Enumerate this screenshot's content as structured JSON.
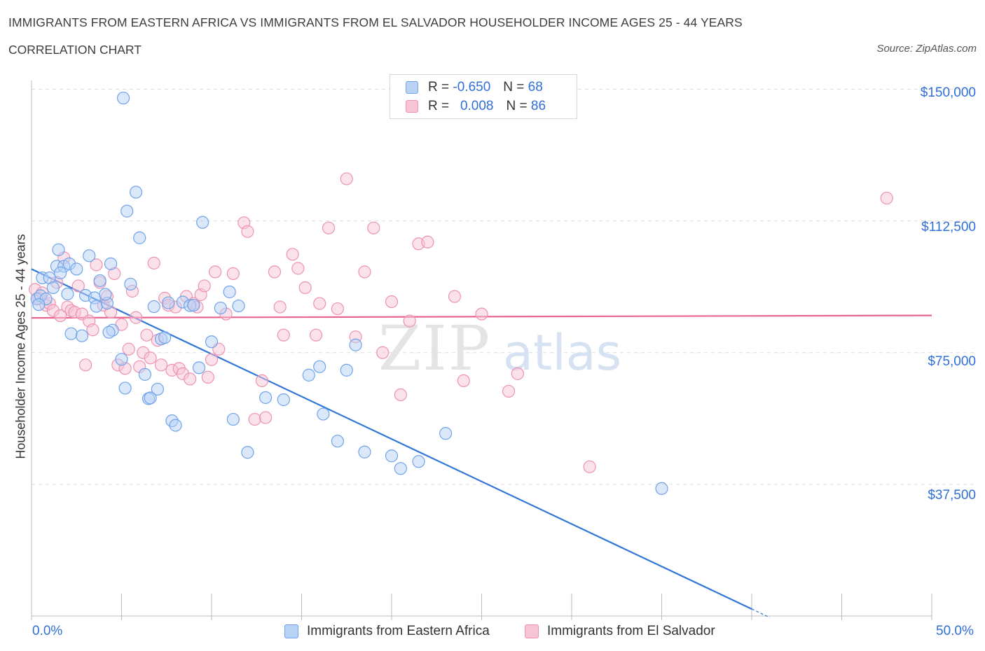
{
  "header": {
    "title": "IMMIGRANTS FROM EASTERN AFRICA VS IMMIGRANTS FROM EL SALVADOR HOUSEHOLDER INCOME AGES 25 - 44 YEARS",
    "subtitle": "CORRELATION CHART",
    "source": "Source: ZipAtlas.com"
  },
  "watermark": "ZIPatlas",
  "legend": {
    "rows": [
      {
        "r_label": "R =",
        "r_value": "-0.650",
        "n_label": "N =",
        "n_value": "68",
        "color": "#6fa3ea"
      },
      {
        "r_label": "R =",
        "r_value": "0.008",
        "n_label": "N =",
        "n_value": "86",
        "color": "#f09ab8"
      }
    ]
  },
  "colors": {
    "blue_fill": "#b8d2f5",
    "blue_stroke": "#6fa3ea",
    "blue_line": "#2f76d6",
    "pink_fill": "#f7c4d5",
    "pink_stroke": "#ec93b2",
    "pink_line": "#e8668d",
    "tick_text": "#2f6fd6",
    "grid": "#dcdcdc"
  },
  "chart_data": {
    "type": "scatter",
    "ylabel": "Householder Income Ages 25 - 44 years",
    "x_tick_labels": [
      "0.0%",
      "50.0%"
    ],
    "y_tick_labels": [
      "$150,000",
      "$112,500",
      "$75,000",
      "$37,500"
    ],
    "y_ticks": [
      150000,
      112500,
      75000,
      37500
    ],
    "xlim": [
      0,
      50
    ],
    "ylim": [
      0,
      152500
    ],
    "grid": true,
    "series": [
      {
        "name": "Immigrants from Eastern Africa",
        "color": "blue",
        "trend": {
          "x": [
            0,
            40
          ],
          "y": [
            98800,
            2000
          ]
        },
        "points": [
          [
            0.3,
            90300
          ],
          [
            0.5,
            91200
          ],
          [
            0.8,
            90300
          ],
          [
            0.6,
            96300
          ],
          [
            1.0,
            96300
          ],
          [
            1.4,
            99600
          ],
          [
            1.5,
            104300
          ],
          [
            1.8,
            99600
          ],
          [
            1.2,
            93500
          ],
          [
            2.1,
            100300
          ],
          [
            2.0,
            91700
          ],
          [
            2.5,
            98800
          ],
          [
            2.2,
            80400
          ],
          [
            2.8,
            79800
          ],
          [
            3.2,
            102600
          ],
          [
            3.0,
            91300
          ],
          [
            3.5,
            90600
          ],
          [
            3.8,
            95500
          ],
          [
            3.6,
            88200
          ],
          [
            4.2,
            89100
          ],
          [
            4.1,
            91600
          ],
          [
            4.4,
            100300
          ],
          [
            4.5,
            81400
          ],
          [
            4.3,
            80800
          ],
          [
            5.0,
            73100
          ],
          [
            5.2,
            64900
          ],
          [
            5.3,
            115300
          ],
          [
            5.5,
            94500
          ],
          [
            5.8,
            120700
          ],
          [
            6.0,
            107700
          ],
          [
            6.3,
            68800
          ],
          [
            6.5,
            61900
          ],
          [
            6.6,
            62100
          ],
          [
            6.8,
            88100
          ],
          [
            7.0,
            64600
          ],
          [
            7.2,
            78900
          ],
          [
            7.4,
            79300
          ],
          [
            7.6,
            89200
          ],
          [
            7.8,
            55600
          ],
          [
            8.0,
            54300
          ],
          [
            8.4,
            89400
          ],
          [
            8.8,
            88400
          ],
          [
            9.0,
            88500
          ],
          [
            9.3,
            70700
          ],
          [
            9.5,
            112100
          ],
          [
            10.0,
            78100
          ],
          [
            10.5,
            87700
          ],
          [
            11.0,
            92300
          ],
          [
            11.2,
            56000
          ],
          [
            11.5,
            88300
          ],
          [
            12.0,
            46600
          ],
          [
            13.0,
            62200
          ],
          [
            14.0,
            61600
          ],
          [
            15.4,
            68600
          ],
          [
            16.0,
            71000
          ],
          [
            16.2,
            57500
          ],
          [
            17.0,
            49800
          ],
          [
            17.5,
            70000
          ],
          [
            18.0,
            77200
          ],
          [
            18.5,
            46700
          ],
          [
            20.0,
            45600
          ],
          [
            20.5,
            42000
          ],
          [
            21.5,
            44000
          ],
          [
            23.0,
            52000
          ],
          [
            35.0,
            36300
          ],
          [
            0.4,
            88700
          ],
          [
            1.6,
            97700
          ],
          [
            5.1,
            147500
          ]
        ]
      },
      {
        "name": "Immigrants from El Salvador",
        "color": "pink",
        "trend": {
          "x": [
            0,
            50
          ],
          "y": [
            84900,
            85600
          ]
        },
        "points": [
          [
            0.2,
            93000
          ],
          [
            0.4,
            90500
          ],
          [
            0.6,
            92000
          ],
          [
            0.8,
            88500
          ],
          [
            1.0,
            89000
          ],
          [
            1.2,
            87000
          ],
          [
            1.4,
            95000
          ],
          [
            1.6,
            85500
          ],
          [
            1.8,
            102000
          ],
          [
            2.0,
            88000
          ],
          [
            2.2,
            87000
          ],
          [
            2.4,
            86500
          ],
          [
            2.6,
            94000
          ],
          [
            2.8,
            86000
          ],
          [
            3.0,
            71500
          ],
          [
            3.2,
            84000
          ],
          [
            3.4,
            81500
          ],
          [
            3.6,
            100000
          ],
          [
            3.8,
            95000
          ],
          [
            4.0,
            88500
          ],
          [
            4.2,
            91000
          ],
          [
            4.4,
            86500
          ],
          [
            4.6,
            97500
          ],
          [
            4.8,
            71500
          ],
          [
            5.0,
            83000
          ],
          [
            5.2,
            70500
          ],
          [
            5.4,
            76000
          ],
          [
            5.6,
            92500
          ],
          [
            5.8,
            85000
          ],
          [
            6.0,
            71000
          ],
          [
            6.2,
            75000
          ],
          [
            6.4,
            80000
          ],
          [
            6.6,
            73500
          ],
          [
            6.8,
            100500
          ],
          [
            7.0,
            78500
          ],
          [
            7.2,
            71500
          ],
          [
            7.4,
            90500
          ],
          [
            7.6,
            88500
          ],
          [
            7.8,
            70000
          ],
          [
            8.0,
            88000
          ],
          [
            8.2,
            70500
          ],
          [
            8.4,
            69000
          ],
          [
            8.6,
            91000
          ],
          [
            8.8,
            67500
          ],
          [
            9.0,
            89000
          ],
          [
            9.2,
            88000
          ],
          [
            9.4,
            91500
          ],
          [
            9.6,
            94000
          ],
          [
            9.8,
            68000
          ],
          [
            10.0,
            73000
          ],
          [
            10.2,
            98000
          ],
          [
            10.4,
            76000
          ],
          [
            10.8,
            86000
          ],
          [
            11.2,
            97500
          ],
          [
            11.8,
            112000
          ],
          [
            12.0,
            109500
          ],
          [
            12.4,
            56000
          ],
          [
            12.8,
            67000
          ],
          [
            13.0,
            56500
          ],
          [
            13.5,
            98000
          ],
          [
            13.8,
            88000
          ],
          [
            14.0,
            80000
          ],
          [
            14.5,
            103000
          ],
          [
            14.8,
            99000
          ],
          [
            15.2,
            93500
          ],
          [
            15.8,
            80000
          ],
          [
            16.0,
            89000
          ],
          [
            16.5,
            110500
          ],
          [
            17.0,
            87500
          ],
          [
            17.5,
            124500
          ],
          [
            18.0,
            79500
          ],
          [
            18.5,
            98000
          ],
          [
            19.0,
            110500
          ],
          [
            19.5,
            75000
          ],
          [
            20.0,
            89500
          ],
          [
            20.5,
            63000
          ],
          [
            21.0,
            84000
          ],
          [
            21.5,
            106000
          ],
          [
            22.0,
            106500
          ],
          [
            23.5,
            91000
          ],
          [
            24.0,
            67000
          ],
          [
            25.0,
            86000
          ],
          [
            26.5,
            64000
          ],
          [
            27.0,
            69000
          ],
          [
            47.5,
            119000
          ],
          [
            31.0,
            42500
          ]
        ]
      }
    ]
  },
  "bottom_legend": {
    "items": [
      {
        "label": "Immigrants from Eastern Africa"
      },
      {
        "label": "Immigrants from El Salvador"
      }
    ]
  }
}
